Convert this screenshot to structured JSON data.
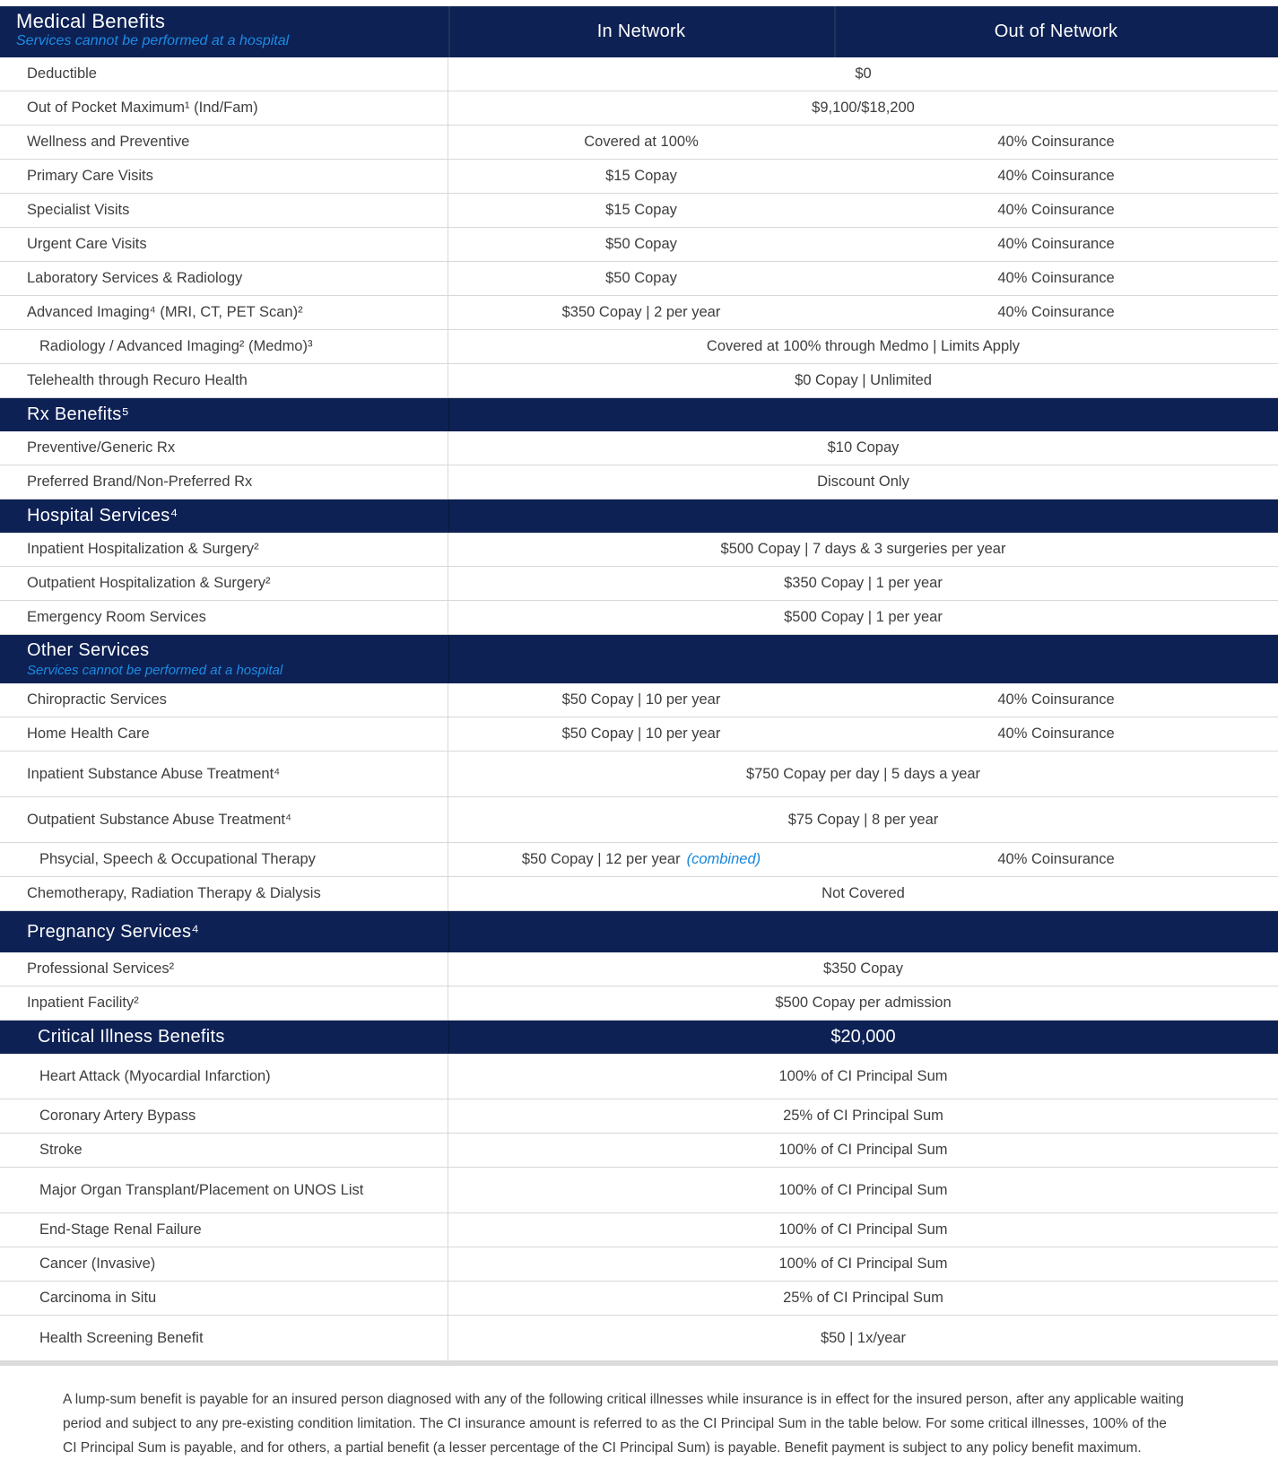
{
  "header": {
    "title": "Medical Benefits",
    "subtitle": "Services cannot be performed at a hospital",
    "col_in": "In Network",
    "col_out": "Out of Network"
  },
  "colors": {
    "navy": "#0d2154",
    "accent_blue": "#1d8be4",
    "text_gray": "#3e3e3e",
    "divider_gray": "#d8d8d8"
  },
  "blocks": [
    {
      "t": "row",
      "label": "Deductible",
      "span": "$0"
    },
    {
      "t": "row",
      "label": "Out of Pocket Maximum¹ (Ind/Fam)",
      "span": "$9,100/$18,200"
    },
    {
      "t": "row",
      "label": "Wellness and Preventive",
      "in": "Covered at 100%",
      "out": "40% Coinsurance"
    },
    {
      "t": "row",
      "label": "Primary Care Visits",
      "in": "$15 Copay",
      "out": "40% Coinsurance"
    },
    {
      "t": "row",
      "label": "Specialist Visits",
      "in": "$15 Copay",
      "out": "40% Coinsurance"
    },
    {
      "t": "row",
      "label": "Urgent Care Visits",
      "in": "$50 Copay",
      "out": "40% Coinsurance"
    },
    {
      "t": "row",
      "label": "Laboratory Services & Radiology",
      "in": "$50 Copay",
      "out": "40% Coinsurance"
    },
    {
      "t": "row",
      "label": "Advanced Imaging⁴ (MRI, CT, PET Scan)²",
      "in": "$350 Copay | 2 per year",
      "out": "40% Coinsurance"
    },
    {
      "t": "row",
      "label": "Radiology / Advanced Imaging² (Medmo)³",
      "span": "Covered at 100% through Medmo | Limits Apply",
      "indent": true
    },
    {
      "t": "row",
      "label": "Telehealth through Recuro Health",
      "span": "$0 Copay | Unlimited"
    },
    {
      "t": "band",
      "title": "Rx Benefits⁵"
    },
    {
      "t": "row",
      "label": "Preventive/Generic Rx",
      "span": "$10 Copay"
    },
    {
      "t": "row",
      "label": "Preferred Brand/Non-Preferred Rx",
      "span": "Discount Only"
    },
    {
      "t": "band",
      "title": "Hospital Services⁴"
    },
    {
      "t": "row",
      "label": "Inpatient Hospitalization & Surgery²",
      "span": "$500 Copay | 7 days & 3 surgeries per year"
    },
    {
      "t": "row",
      "label": "Outpatient Hospitalization & Surgery²",
      "span": "$350 Copay | 1 per year"
    },
    {
      "t": "row",
      "label": "Emergency Room Services",
      "span": "$500 Copay | 1 per year"
    },
    {
      "t": "band",
      "title": "Other Services",
      "subtitle": "Services cannot be performed at a hospital"
    },
    {
      "t": "row",
      "label": "Chiropractic Services",
      "in": "$50 Copay | 10 per year",
      "out": "40% Coinsurance"
    },
    {
      "t": "row",
      "label": "Home Health Care",
      "in": "$50 Copay | 10 per year",
      "out": "40% Coinsurance"
    },
    {
      "t": "row",
      "label": "Inpatient Substance Abuse Treatment⁴",
      "span": "$750 Copay per day | 5 days a year",
      "tall": true
    },
    {
      "t": "row",
      "label": "Outpatient Substance Abuse Treatment⁴",
      "span": "$75 Copay | 8 per year",
      "tall": true
    },
    {
      "t": "row",
      "label": "Phsycial, Speech & Occupational Therapy",
      "in": "$50 Copay | 12 per year",
      "in_note": "(combined)",
      "out": "40% Coinsurance",
      "indent": true
    },
    {
      "t": "row",
      "label": "Chemotherapy, Radiation Therapy & Dialysis",
      "span": "Not Covered"
    },
    {
      "t": "band",
      "title": "Pregnancy Services⁴",
      "tall": true
    },
    {
      "t": "row",
      "label": "Professional Services²",
      "span": "$350 Copay"
    },
    {
      "t": "row",
      "label": "Inpatient Facility²",
      "span": "$500 Copay per admission"
    },
    {
      "t": "band",
      "title": "Critical Illness Benefits",
      "value": "$20,000"
    },
    {
      "t": "row",
      "label": "Heart Attack (Myocardial Infarction)",
      "span": "100% of CI Principal Sum",
      "indent": true,
      "tall": true
    },
    {
      "t": "row",
      "label": "Coronary Artery Bypass",
      "span": "25% of CI Principal Sum",
      "indent": true
    },
    {
      "t": "row",
      "label": "Stroke",
      "span": "100% of CI Principal Sum",
      "indent": true
    },
    {
      "t": "row",
      "label": "Major Organ Transplant/Placement on UNOS List",
      "span": "100% of CI Principal Sum",
      "indent": true,
      "tall": true
    },
    {
      "t": "row",
      "label": "End-Stage Renal Failure",
      "span": "100% of CI Principal Sum",
      "indent": true
    },
    {
      "t": "row",
      "label": "Cancer (Invasive)",
      "span": "100% of CI Principal Sum",
      "indent": true
    },
    {
      "t": "row",
      "label": "Carcinoma in Situ",
      "span": "25% of CI Principal Sum",
      "indent": true
    },
    {
      "t": "row",
      "label": "Health Screening Benefit",
      "span": "$50 | 1x/year",
      "indent": true,
      "tall": true
    }
  ],
  "footnote": "A lump-sum benefit is payable for an insured person diagnosed with any of the following critical illnesses while insurance is in effect for the insured person, after any applicable waiting period and subject to any pre-existing condition limitation. The CI insurance amount is referred to as the CI Principal Sum in the table below. For some critical illnesses, 100% of the CI Principal Sum is payable, and for others, a partial benefit (a lesser percentage of the CI Principal Sum) is payable. Benefit payment is subject to any policy benefit maximum."
}
